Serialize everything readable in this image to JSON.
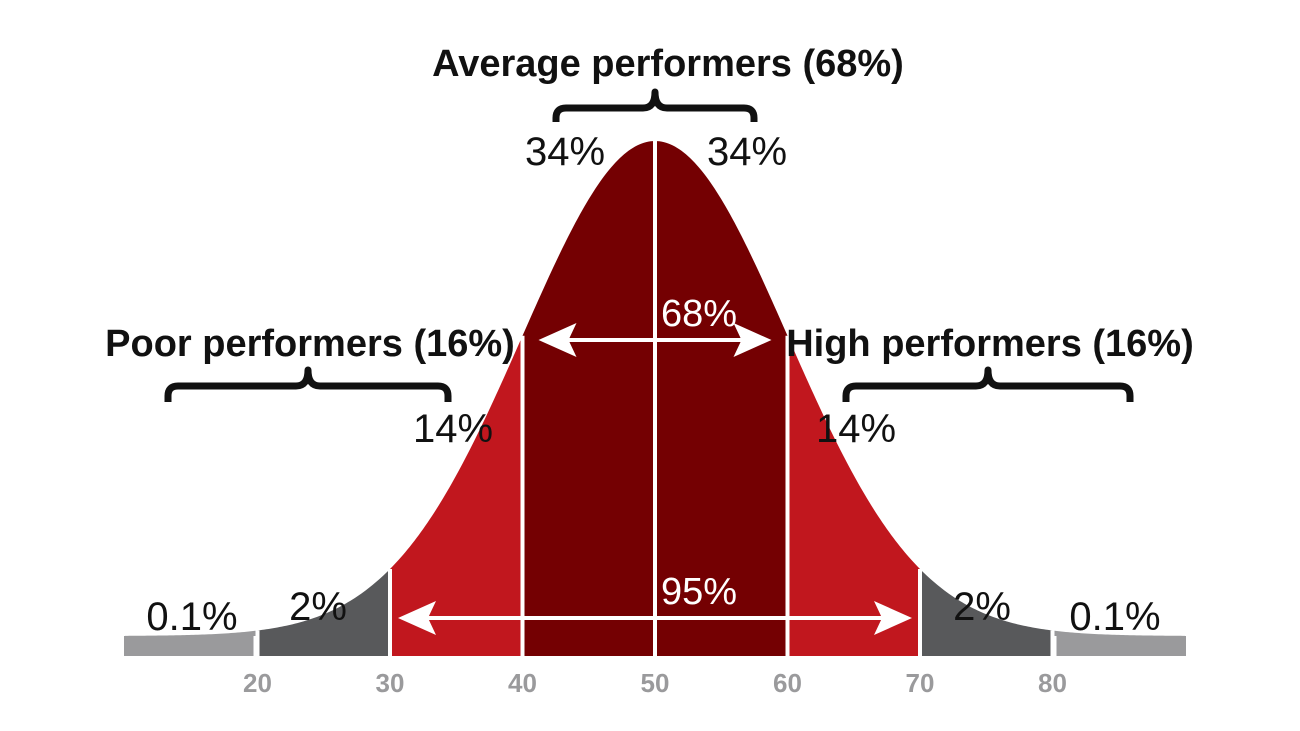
{
  "chart_data": {
    "type": "area",
    "title": "",
    "xlabel": "",
    "ylabel": "",
    "distribution": "normal",
    "mean": 50,
    "sd": 10,
    "x_ticks": [
      20,
      30,
      40,
      50,
      60,
      70,
      80
    ],
    "xlim": [
      10,
      90
    ],
    "segments": [
      {
        "range": [
          10,
          20
        ],
        "label": "0.1%",
        "color": "#9a9a9c"
      },
      {
        "range": [
          20,
          30
        ],
        "label": "2%",
        "color": "#58595b"
      },
      {
        "range": [
          30,
          40
        ],
        "label": "14%",
        "color": "#c1171e"
      },
      {
        "range": [
          40,
          50
        ],
        "label": "34%",
        "color": "#740002"
      },
      {
        "range": [
          50,
          60
        ],
        "label": "34%",
        "color": "#740002"
      },
      {
        "range": [
          60,
          70
        ],
        "label": "14%",
        "color": "#c1171e"
      },
      {
        "range": [
          70,
          80
        ],
        "label": "2%",
        "color": "#58595b"
      },
      {
        "range": [
          80,
          90
        ],
        "label": "0.1%",
        "color": "#9a9a9c"
      }
    ],
    "spans": [
      {
        "range": [
          40,
          60
        ],
        "label": "68%"
      },
      {
        "range": [
          30,
          70
        ],
        "label": "95%"
      }
    ],
    "groups": [
      {
        "range": [
          40,
          60
        ],
        "label": "Average performers (68%)"
      },
      {
        "range": [
          10,
          40
        ],
        "label": "Poor performers (16%)"
      },
      {
        "range": [
          60,
          90
        ],
        "label": "High performers (16%)"
      }
    ]
  }
}
